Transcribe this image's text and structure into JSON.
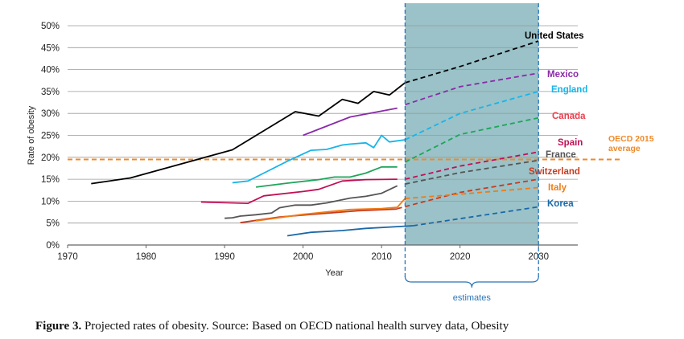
{
  "chart_data": {
    "type": "line",
    "xlabel": "Year",
    "ylabel": "Rate of obesity",
    "xlim": [
      1970,
      2035
    ],
    "ylim": [
      0,
      50
    ],
    "x_ticks": [
      "1970",
      "1980",
      "1990",
      "2000",
      "2010",
      "2020",
      "2030"
    ],
    "y_ticks": [
      "0%",
      "5%",
      "10%",
      "15%",
      "20%",
      "25%",
      "30%",
      "35%",
      "40%",
      "45%",
      "50%"
    ],
    "grid": "horizontal",
    "projection_range": [
      2013,
      2030
    ],
    "projection_label": "estimates",
    "reference_line": {
      "value": 19.5,
      "label": "OECD 2015 average",
      "label_lines": [
        "OECD 2015",
        "average"
      ],
      "color": "#ee8a2a"
    },
    "series": [
      {
        "name": "United States",
        "color": "#000000",
        "observed": [
          [
            1973,
            14
          ],
          [
            1978,
            15.3
          ],
          [
            1991,
            21.7
          ],
          [
            1999,
            30.4
          ],
          [
            2002,
            29.4
          ],
          [
            2005,
            33.2
          ],
          [
            2007,
            32.3
          ],
          [
            2009,
            35
          ],
          [
            2011,
            34.2
          ],
          [
            2013,
            37
          ]
        ],
        "projected": [
          [
            2013,
            37
          ],
          [
            2020,
            40.7
          ],
          [
            2030,
            46.5
          ]
        ]
      },
      {
        "name": "Mexico",
        "color": "#8a2aa8",
        "observed": [
          [
            2000,
            25
          ],
          [
            2006,
            29.2
          ],
          [
            2012,
            31.2
          ]
        ],
        "projected": [
          [
            2013,
            32
          ],
          [
            2020,
            36.1
          ],
          [
            2030,
            39.2
          ]
        ]
      },
      {
        "name": "England",
        "color": "#18b4e8",
        "observed": [
          [
            1991,
            14.2
          ],
          [
            1993,
            14.6
          ],
          [
            1995,
            16.4
          ],
          [
            1998,
            19.1
          ],
          [
            2001,
            21.6
          ],
          [
            2003,
            21.8
          ],
          [
            2005,
            22.8
          ],
          [
            2006,
            23
          ],
          [
            2008,
            23.3
          ],
          [
            2009,
            22.2
          ],
          [
            2010,
            25
          ],
          [
            2011,
            23.5
          ],
          [
            2013,
            24
          ]
        ],
        "projected": [
          [
            2013,
            24
          ],
          [
            2020,
            30
          ],
          [
            2030,
            35
          ]
        ]
      },
      {
        "name": "Canada",
        "color": "#e8404e",
        "observed": [],
        "projected": []
      },
      {
        "name": "Spain",
        "color": "#c01055",
        "observed": [
          [
            1987,
            9.8
          ],
          [
            1993,
            9.5
          ],
          [
            1995,
            11.2
          ],
          [
            2000,
            12.2
          ],
          [
            2002,
            12.7
          ],
          [
            2005,
            14.6
          ],
          [
            2008,
            14.9
          ],
          [
            2012,
            15
          ]
        ],
        "projected": [
          [
            2013,
            15
          ],
          [
            2020,
            18
          ],
          [
            2030,
            21.2
          ]
        ]
      },
      {
        "name": "France",
        "color": "#555555",
        "observed": [
          [
            1990,
            6.1
          ],
          [
            1991,
            6.2
          ],
          [
            1992,
            6.6
          ],
          [
            1994,
            6.9
          ],
          [
            1996,
            7.3
          ],
          [
            1997,
            8.5
          ],
          [
            1999,
            9.1
          ],
          [
            2001,
            9.1
          ],
          [
            2003,
            9.6
          ],
          [
            2006,
            10.7
          ],
          [
            2008,
            11.1
          ],
          [
            2010,
            11.8
          ],
          [
            2012,
            13.5
          ]
        ],
        "projected": [
          [
            2013,
            13.9
          ],
          [
            2020,
            16.5
          ],
          [
            2030,
            19.3
          ]
        ]
      },
      {
        "name": "Switzerland",
        "color": "#c83a1c",
        "observed": [
          [
            1992,
            5.1
          ],
          [
            1997,
            6.4
          ],
          [
            2002,
            7.1
          ],
          [
            2007,
            7.8
          ],
          [
            2012,
            8.2
          ]
        ],
        "projected": [
          [
            2012,
            8.3
          ],
          [
            2020,
            12
          ],
          [
            2030,
            15
          ]
        ]
      },
      {
        "name": "Italy",
        "color": "#f07b16",
        "observed": [
          [
            1994,
            5.5
          ],
          [
            2000,
            7
          ],
          [
            2006,
            8.1
          ],
          [
            2010,
            8.3
          ],
          [
            2012,
            8.6
          ],
          [
            2013,
            10.6
          ]
        ],
        "projected": [
          [
            2013,
            10.6
          ],
          [
            2020,
            11.6
          ],
          [
            2030,
            13.1
          ]
        ]
      },
      {
        "name": "Korea",
        "color": "#1a68a8",
        "observed": [
          [
            1998,
            2.1
          ],
          [
            2001,
            2.9
          ],
          [
            2005,
            3.3
          ],
          [
            2008,
            3.8
          ],
          [
            2012,
            4.2
          ],
          [
            2014,
            4.4
          ]
        ],
        "projected": [
          [
            2014,
            4.4
          ],
          [
            2020,
            6
          ],
          [
            2030,
            8.7
          ]
        ]
      },
      {
        "name": "",
        "color": "#1fa55a",
        "observed": [
          [
            1994,
            13.2
          ],
          [
            1998,
            14.1
          ],
          [
            2002,
            14.9
          ],
          [
            2004,
            15.5
          ],
          [
            2006,
            15.5
          ],
          [
            2008,
            16.4
          ],
          [
            2010,
            17.8
          ],
          [
            2012,
            17.8
          ]
        ],
        "projected": [
          [
            2013,
            18.9
          ],
          [
            2020,
            25.2
          ],
          [
            2030,
            29
          ]
        ]
      }
    ]
  },
  "caption": {
    "label": "Figure 3.",
    "text": "Projected rates of obesity.  Source:  Based on OECD national health survey data, Obesity"
  }
}
